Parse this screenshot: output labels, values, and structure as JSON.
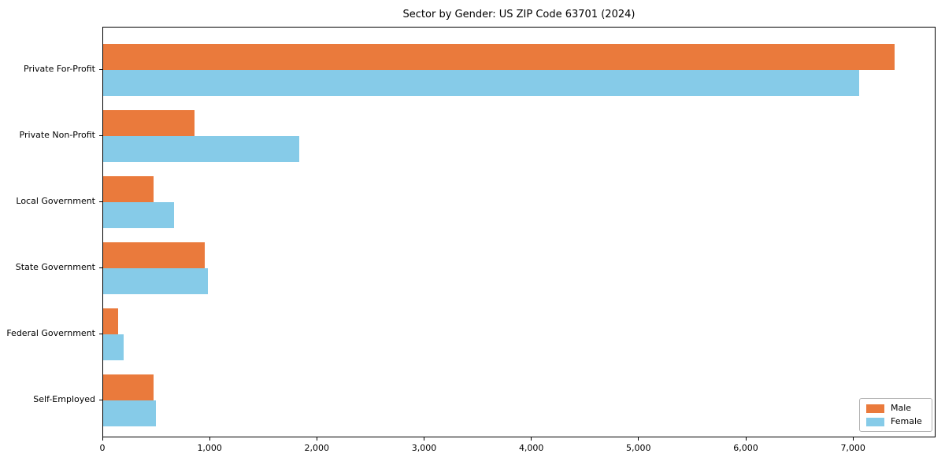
{
  "chart_data": {
    "type": "bar",
    "orientation": "horizontal",
    "title": "Sector by Gender: US ZIP Code 63701 (2024)",
    "categories": [
      "Private For-Profit",
      "Private Non-Profit",
      "Local Government",
      "State Government",
      "Federal Government",
      "Self-Employed"
    ],
    "series": [
      {
        "name": "Male",
        "color": "#EA7A3C",
        "values": [
          7380,
          850,
          470,
          950,
          140,
          470
        ]
      },
      {
        "name": "Female",
        "color": "#86CBE8",
        "values": [
          7050,
          1830,
          660,
          975,
          190,
          495
        ]
      }
    ],
    "xlabel": "",
    "ylabel": "",
    "xlim": [
      0,
      7770
    ],
    "xticks": [
      0,
      1000,
      2000,
      3000,
      4000,
      5000,
      6000,
      7000
    ],
    "xtick_labels": [
      "0",
      "1,000",
      "2,000",
      "3,000",
      "4,000",
      "5,000",
      "6,000",
      "7,000"
    ],
    "grid": false,
    "legend": {
      "position": "lower right",
      "entries": [
        "Male",
        "Female"
      ]
    }
  }
}
